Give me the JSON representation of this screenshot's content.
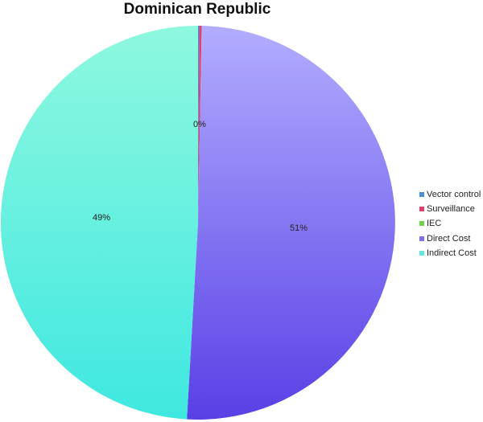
{
  "chart_data": {
    "type": "pie",
    "title": "Dominican Republic",
    "slices": [
      {
        "name": "Vector control",
        "value": 0.1,
        "label": "",
        "color": "#4a90d9"
      },
      {
        "name": "Surveillance",
        "value": 0.2,
        "label": "0%",
        "color": "#e0406a"
      },
      {
        "name": "IEC",
        "value": 0.0,
        "label": "",
        "color": "#6fd64a"
      },
      {
        "name": "Direct Cost",
        "value": 50.6,
        "label": "51%",
        "color": "#7b6ff0"
      },
      {
        "name": "Indirect Cost",
        "value": 49.1,
        "label": "49%",
        "color": "#5ee9dc"
      }
    ],
    "legend_position": "right"
  }
}
